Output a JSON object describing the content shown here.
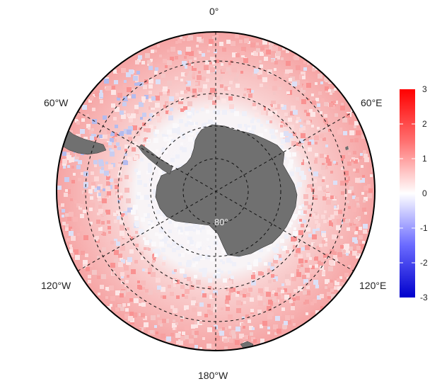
{
  "map": {
    "projection": "south-polar-stereographic",
    "longitude_labels": {
      "top": "0°",
      "upper_left": "60°W",
      "upper_right": "60°E",
      "lower_left": "120°W",
      "lower_right": "120°E",
      "bottom": "180°W"
    },
    "latitude_labels": [
      "80°",
      "80°"
    ],
    "land_color": "#707070",
    "graticule": "dashed"
  },
  "colorbar": {
    "ticks": [
      "3",
      "2",
      "1",
      "0",
      "-1",
      "-2",
      "-3"
    ],
    "min": -3,
    "max": 3,
    "colors": [
      "#0000cc",
      "#ffffff",
      "#ff0000"
    ]
  }
}
